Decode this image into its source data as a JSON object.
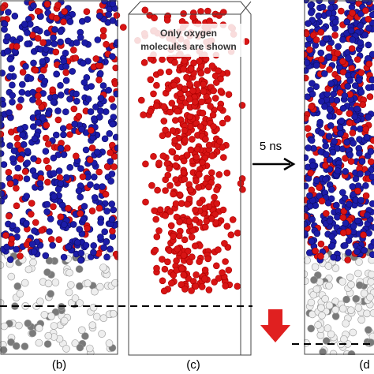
{
  "panels": [
    {
      "label": "(b)"
    },
    {
      "label": "(c)",
      "note_lines": [
        "Only oxygen",
        "molecules are shown"
      ]
    },
    {
      "label": "(d"
    }
  ],
  "arrow_label": "5 ns"
}
